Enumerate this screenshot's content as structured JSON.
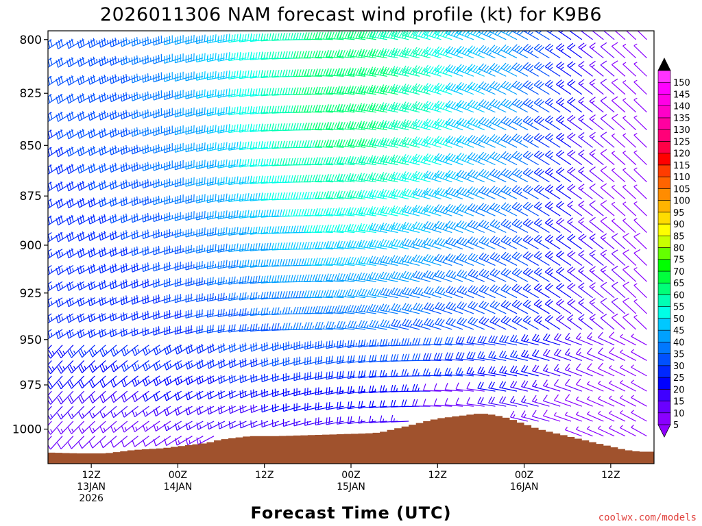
{
  "chart_data": {
    "type": "wind_barb_time_height",
    "title": "2026011306 NAM forecast wind profile (kt) for K9B6",
    "xlabel": "Forecast Time (UTC)",
    "x_ticks": [
      {
        "hour": 6,
        "line1": "12Z",
        "line2": "13JAN",
        "line3": "2026"
      },
      {
        "hour": 18,
        "line1": "00Z",
        "line2": "14JAN",
        "line3": ""
      },
      {
        "hour": 30,
        "line1": "12Z",
        "line2": "",
        "line3": ""
      },
      {
        "hour": 42,
        "line1": "00Z",
        "line2": "15JAN",
        "line3": ""
      },
      {
        "hour": 54,
        "line1": "12Z",
        "line2": "",
        "line3": ""
      },
      {
        "hour": 66,
        "line1": "00Z",
        "line2": "16JAN",
        "line3": ""
      },
      {
        "hour": 78,
        "line1": "12Z",
        "line2": "",
        "line3": ""
      }
    ],
    "x_range_hours": [
      0,
      84
    ],
    "y_range_hpa": [
      796,
      1020
    ],
    "y_ticks": [
      "800",
      "825",
      "850",
      "875",
      "900",
      "925",
      "950",
      "975",
      "1000"
    ],
    "colorbar": {
      "unit": "kt",
      "labels": [
        "5",
        "10",
        "15",
        "20",
        "25",
        "30",
        "35",
        "40",
        "45",
        "50",
        "55",
        "60",
        "65",
        "70",
        "75",
        "80",
        "85",
        "90",
        "95",
        "100",
        "105",
        "110",
        "115",
        "120",
        "125",
        "130",
        "135",
        "140",
        "145",
        "150"
      ],
      "colors": [
        "#8a00ff",
        "#6a00ff",
        "#3f00ff",
        "#0000ff",
        "#0028ff",
        "#0050ff",
        "#0078ff",
        "#00a0ff",
        "#00c8ff",
        "#00ffe6",
        "#00ffb4",
        "#00ff78",
        "#00ff3c",
        "#00ff00",
        "#64ff00",
        "#c8ff00",
        "#ffff00",
        "#ffdc00",
        "#ffb400",
        "#ff8c00",
        "#ff6400",
        "#ff3c00",
        "#ff0000",
        "#ff0046",
        "#ff0078",
        "#ff00a0",
        "#ff00c8",
        "#ff00e6",
        "#ff00ff",
        "#ff33ff"
      ]
    },
    "terrain_color": "#a0522d",
    "surface_pressure_hpa": [
      [
        0,
        1013.5
      ],
      [
        4,
        1014
      ],
      [
        8,
        1014
      ],
      [
        12,
        1012
      ],
      [
        16,
        1011
      ],
      [
        18,
        1010
      ],
      [
        20,
        1009
      ],
      [
        22,
        1008
      ],
      [
        24,
        1006
      ],
      [
        26,
        1005
      ],
      [
        28,
        1004
      ],
      [
        32,
        1004
      ],
      [
        36,
        1003.5
      ],
      [
        40,
        1003
      ],
      [
        44,
        1002.5
      ],
      [
        46,
        1002
      ],
      [
        48,
        1000
      ],
      [
        50,
        998
      ],
      [
        52,
        996
      ],
      [
        54,
        994
      ],
      [
        56,
        993
      ],
      [
        58,
        992
      ],
      [
        60,
        991
      ],
      [
        62,
        992
      ],
      [
        64,
        994
      ],
      [
        66,
        997
      ],
      [
        68,
        1000
      ],
      [
        70,
        1002
      ],
      [
        72,
        1004
      ],
      [
        74,
        1006
      ],
      [
        76,
        1008
      ],
      [
        78,
        1010
      ],
      [
        80,
        1012
      ],
      [
        82,
        1013
      ],
      [
        84,
        1013
      ]
    ]
  },
  "credit": "coolwx.com/models"
}
